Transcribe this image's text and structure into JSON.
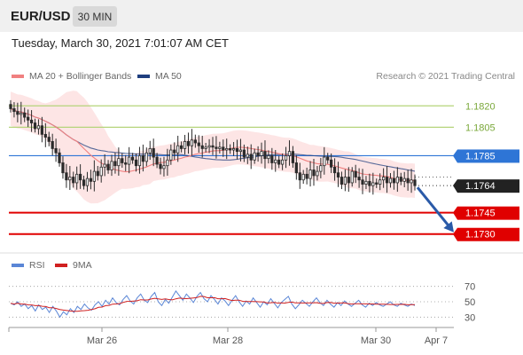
{
  "header": {
    "symbol": "EUR/USD",
    "timeframe": "30 MIN",
    "datetime": "Tuesday, March 30, 2021 7:01:07 AM CET"
  },
  "legends": {
    "ma20_label": "MA 20 + Bollinger Bands",
    "ma50_label": "MA 50",
    "credit": "Research © 2021 Trading Central",
    "rsi_label": "RSI",
    "rsi_ma_label": "9MA"
  },
  "colors": {
    "background": "#ffffff",
    "header_bg": "#f0f0f0",
    "candle": "#2b2b2b",
    "ma20": "#f08080",
    "bollinger_fill": "#fde0e0",
    "ma50": "#1f3f7f",
    "resistance_green": "#b5d47a",
    "pivot_blue": "#2e75d6",
    "current_price_bg": "#222222",
    "support_red": "#e00000",
    "forecast_arrow": "#2a5aa8",
    "rsi_line": "#5a86d6",
    "rsi_ma": "#d02020"
  },
  "chart_data": [
    {
      "type": "candlestick",
      "title": "",
      "x_tick_labels": [
        "Mar 26",
        "Mar 28",
        "Mar 30",
        "Apr 7"
      ],
      "ylim": [
        1.1718,
        1.1832
      ],
      "current_price": 1.1764,
      "levels": [
        {
          "value": 1.182,
          "label": "1.1820",
          "kind": "resistance"
        },
        {
          "value": 1.1805,
          "label": "1.1805",
          "kind": "resistance"
        },
        {
          "value": 1.1785,
          "label": "1.1785",
          "kind": "pivot"
        },
        {
          "value": 1.1764,
          "label": "1.1764",
          "kind": "current"
        },
        {
          "value": 1.1745,
          "label": "1.1745",
          "kind": "support"
        },
        {
          "value": 1.173,
          "label": "1.1730",
          "kind": "support"
        }
      ],
      "forecast": {
        "from": 1.1764,
        "to": 1.173,
        "direction": "down"
      },
      "series": [
        {
          "name": "MA 20 + Bollinger Bands",
          "kind": "ma20"
        },
        {
          "name": "MA 50",
          "kind": "ma50"
        }
      ],
      "closes": [
        1.1818,
        1.1816,
        1.1814,
        1.1815,
        1.1812,
        1.181,
        1.1808,
        1.1804,
        1.1806,
        1.18,
        1.1798,
        1.1795,
        1.179,
        1.1787,
        1.178,
        1.1773,
        1.1768,
        1.177,
        1.1766,
        1.1772,
        1.1768,
        1.1764,
        1.1769,
        1.1767,
        1.1774,
        1.1771,
        1.1777,
        1.1779,
        1.1775,
        1.1781,
        1.1778,
        1.1783,
        1.178,
        1.1779,
        1.1784,
        1.1782,
        1.1778,
        1.1785,
        1.1781,
        1.1787,
        1.179,
        1.1784,
        1.1779,
        1.1776,
        1.1778,
        1.1782,
        1.1789,
        1.1787,
        1.1792,
        1.179,
        1.1795,
        1.1792,
        1.1796,
        1.1794,
        1.1792,
        1.179,
        1.1791,
        1.1792,
        1.1791,
        1.179,
        1.1791,
        1.1789,
        1.179,
        1.1789,
        1.179,
        1.1788,
        1.1789,
        1.1784,
        1.1786,
        1.1782,
        1.1787,
        1.1785,
        1.1788,
        1.1783,
        1.1785,
        1.178,
        1.1782,
        1.1779,
        1.1782,
        1.1785,
        1.1788,
        1.178,
        1.1773,
        1.1768,
        1.1772,
        1.1769,
        1.1775,
        1.1771,
        1.1774,
        1.1778,
        1.1784,
        1.1782,
        1.1777,
        1.1773,
        1.177,
        1.1765,
        1.177,
        1.1766,
        1.1774,
        1.177,
        1.1768,
        1.1765,
        1.1767,
        1.1764,
        1.1766,
        1.1765,
        1.1768,
        1.177,
        1.1766,
        1.1769,
        1.1766,
        1.177,
        1.1767,
        1.1769,
        1.1766,
        1.1768,
        1.1764
      ]
    },
    {
      "type": "line",
      "title": "",
      "ylim": [
        20,
        80
      ],
      "y_ticks": [
        70,
        50,
        30
      ],
      "series": [
        {
          "name": "RSI",
          "kind": "rsi"
        },
        {
          "name": "9MA",
          "kind": "rsi_ma"
        }
      ],
      "rsi": [
        48,
        46,
        50,
        44,
        47,
        41,
        45,
        38,
        46,
        40,
        43,
        36,
        44,
        38,
        30,
        37,
        33,
        41,
        36,
        44,
        40,
        47,
        42,
        39,
        46,
        50,
        44,
        52,
        47,
        55,
        49,
        46,
        53,
        58,
        51,
        47,
        55,
        60,
        52,
        49,
        57,
        62,
        50,
        45,
        53,
        48,
        56,
        64,
        58,
        52,
        60,
        55,
        49,
        57,
        62,
        54,
        50,
        58,
        53,
        47,
        55,
        51,
        45,
        52,
        58,
        50,
        44,
        51,
        47,
        55,
        49,
        43,
        50,
        46,
        54,
        48,
        42,
        49,
        53,
        57,
        47,
        41,
        46,
        52,
        48,
        44,
        50,
        55,
        49,
        45,
        52,
        47,
        43,
        49,
        45,
        51,
        47,
        44,
        48,
        52,
        46,
        43,
        48,
        45,
        49,
        46,
        44,
        47,
        50,
        46,
        44,
        48,
        46,
        44,
        47,
        45
      ]
    }
  ]
}
